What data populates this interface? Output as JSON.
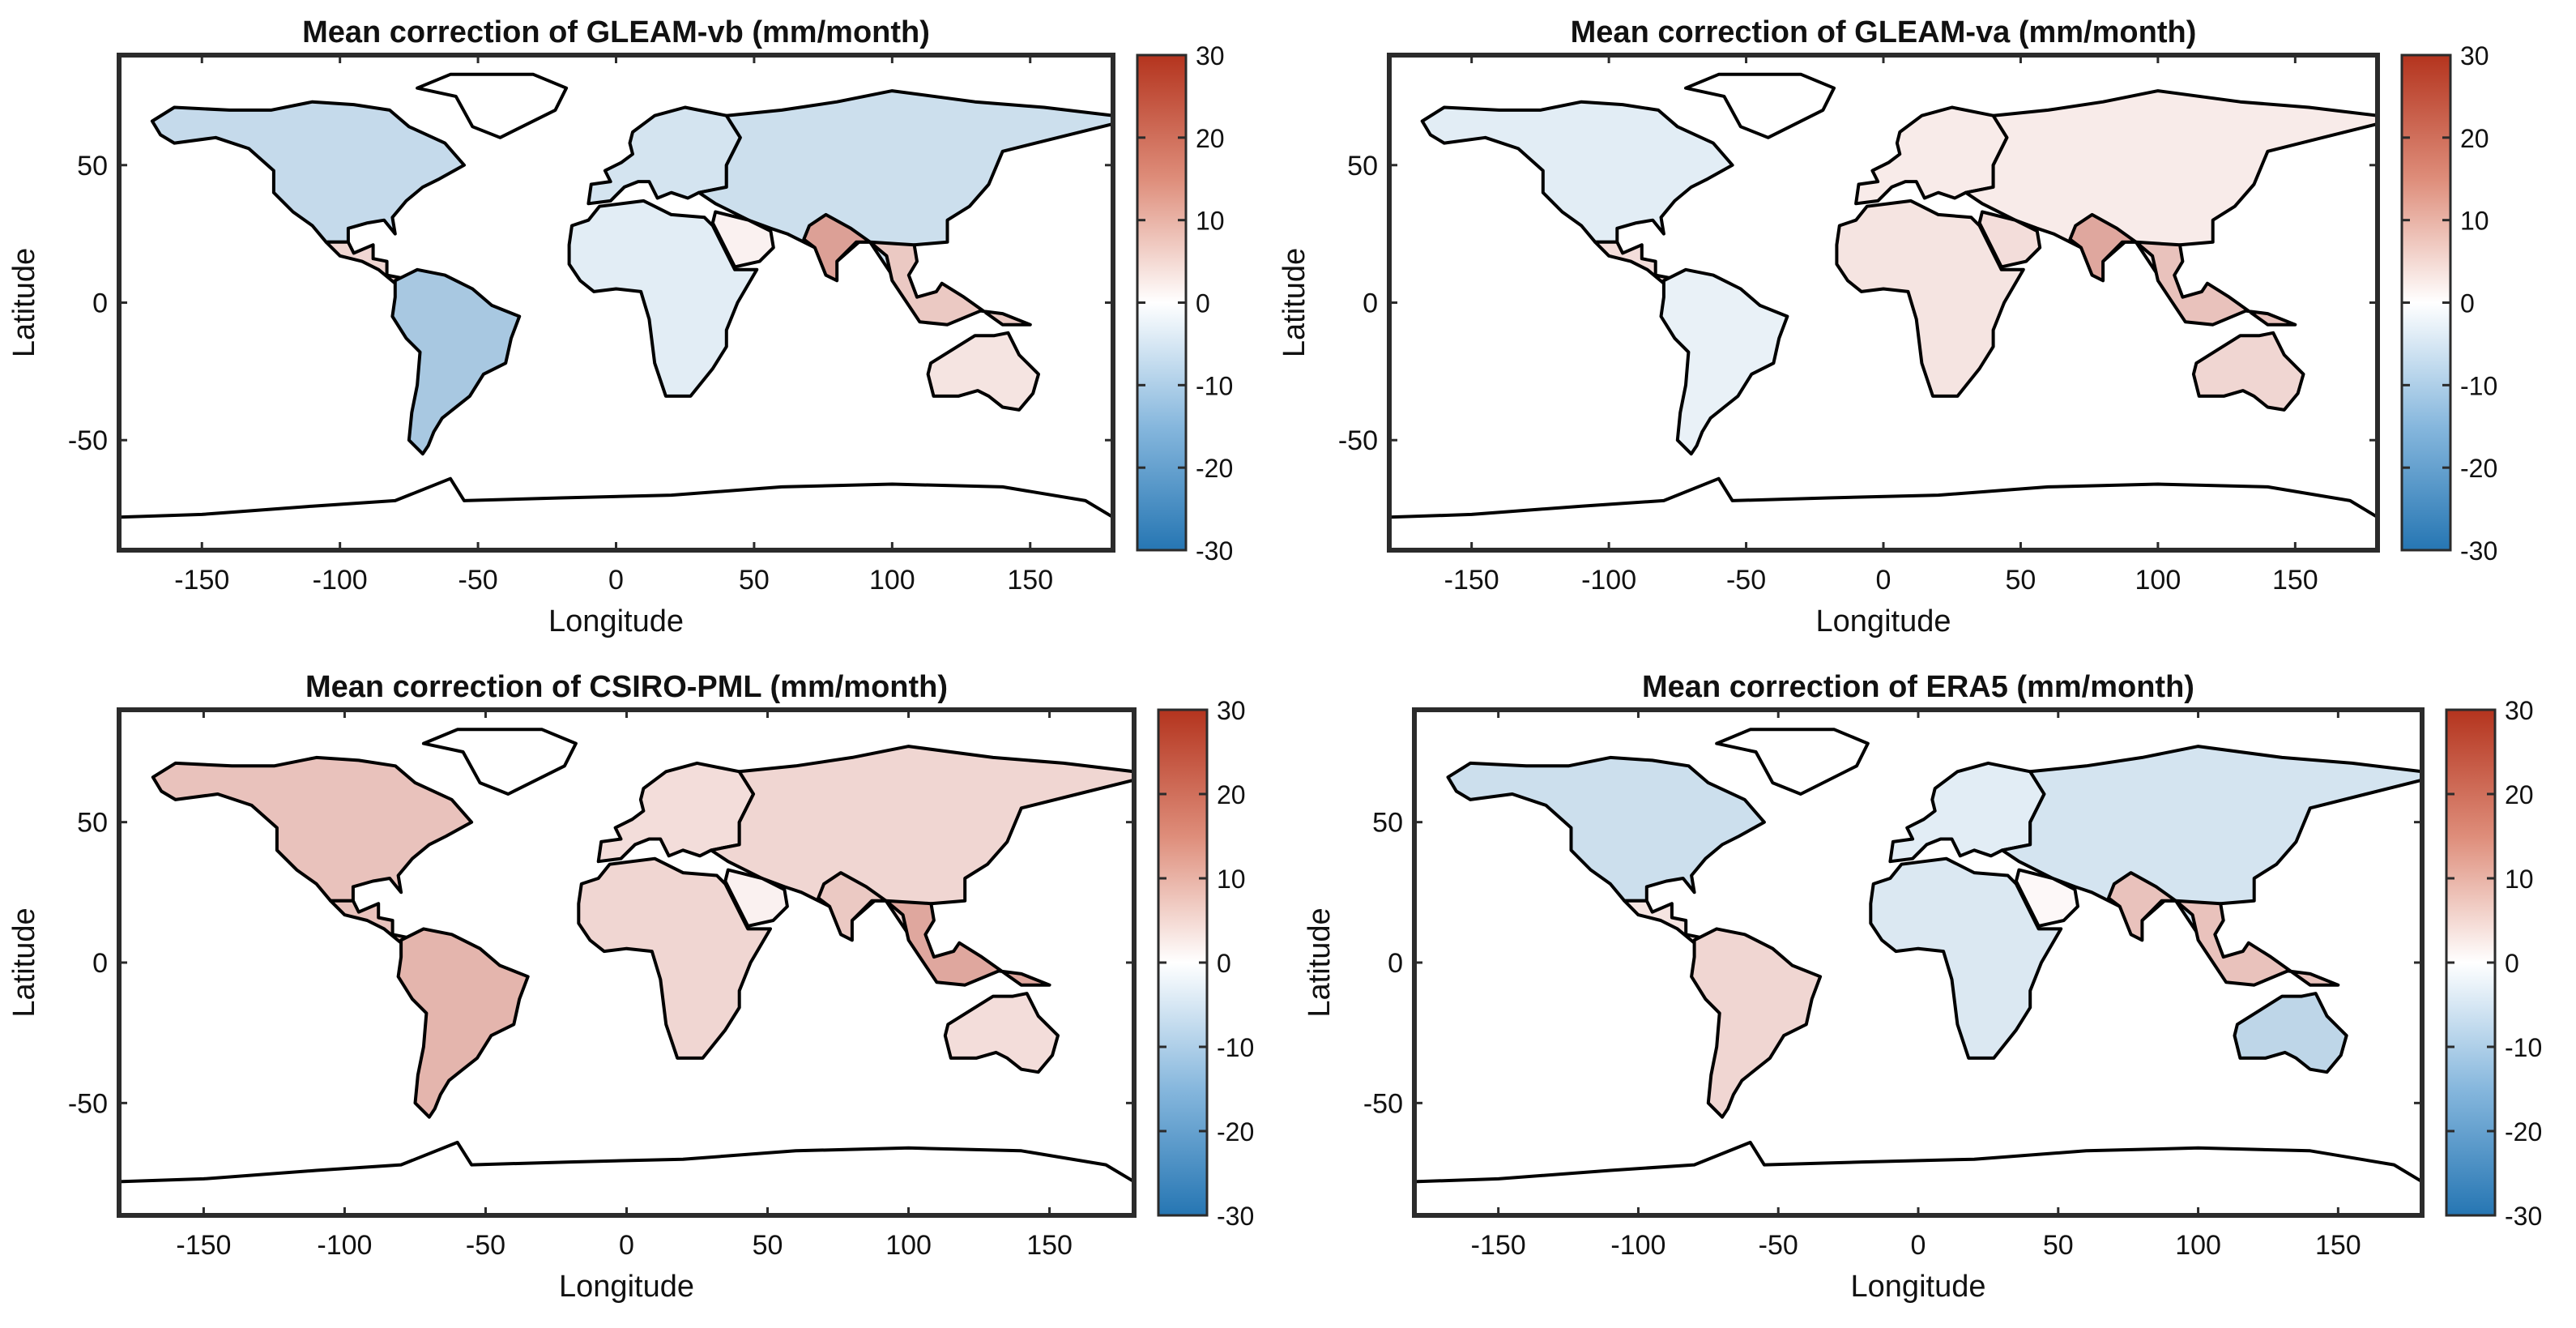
{
  "figure": {
    "type": "map-grid",
    "rows": 2,
    "cols": 2
  },
  "colors": {
    "blue": "#2676b3",
    "white": "#ffffff",
    "red": "#b4341e",
    "land_outline": "#000000",
    "frame": "#2b2b2b"
  },
  "chart_data": [
    {
      "type": "heatmap",
      "title": "Mean correction of GLEAM-vb (mm/month)",
      "xlabel": "Longitude",
      "ylabel": "Latitude",
      "xlim": [
        -180,
        180
      ],
      "ylim": [
        -90,
        90
      ],
      "xticks": [
        -150,
        -100,
        -50,
        0,
        50,
        100,
        150
      ],
      "yticks": [
        -50,
        0,
        50
      ],
      "colorbar": {
        "min": -30,
        "max": 30,
        "ticks": [
          30,
          20,
          10,
          0,
          -10,
          -20,
          -30
        ]
      },
      "regions": [
        {
          "name": "North America",
          "value": -8
        },
        {
          "name": "Greenland",
          "value": 0
        },
        {
          "name": "Central America",
          "value": 6
        },
        {
          "name": "South America",
          "value": -12
        },
        {
          "name": "Africa",
          "value": -4
        },
        {
          "name": "Europe",
          "value": -6
        },
        {
          "name": "Asia",
          "value": -7
        },
        {
          "name": "Arabia",
          "value": 2
        },
        {
          "name": "India",
          "value": 14
        },
        {
          "name": "Southeast Asia",
          "value": 8
        },
        {
          "name": "Australia",
          "value": 4
        },
        {
          "name": "Antarctica",
          "value": 0
        }
      ]
    },
    {
      "type": "heatmap",
      "title": "Mean correction of GLEAM-va (mm/month)",
      "xlabel": "Longitude",
      "ylabel": "Latitude",
      "xlim": [
        -180,
        180
      ],
      "ylim": [
        -90,
        90
      ],
      "xticks": [
        -150,
        -100,
        -50,
        0,
        50,
        100,
        150
      ],
      "yticks": [
        -50,
        0,
        50
      ],
      "colorbar": {
        "min": -30,
        "max": 30,
        "ticks": [
          30,
          20,
          10,
          0,
          -10,
          -20,
          -30
        ]
      },
      "regions": [
        {
          "name": "North America",
          "value": -4
        },
        {
          "name": "Greenland",
          "value": 0
        },
        {
          "name": "Central America",
          "value": 5
        },
        {
          "name": "South America",
          "value": -3
        },
        {
          "name": "Africa",
          "value": 4
        },
        {
          "name": "Europe",
          "value": 3
        },
        {
          "name": "Asia",
          "value": 3
        },
        {
          "name": "Arabia",
          "value": 5
        },
        {
          "name": "India",
          "value": 13
        },
        {
          "name": "Southeast Asia",
          "value": 9
        },
        {
          "name": "Australia",
          "value": 6
        },
        {
          "name": "Antarctica",
          "value": 0
        }
      ]
    },
    {
      "type": "heatmap",
      "title": "Mean correction of CSIRO-PML (mm/month)",
      "xlabel": "Longitude",
      "ylabel": "Latitude",
      "xlim": [
        -180,
        180
      ],
      "ylim": [
        -90,
        90
      ],
      "xticks": [
        -150,
        -100,
        -50,
        0,
        50,
        100,
        150
      ],
      "yticks": [
        -50,
        0,
        50
      ],
      "colorbar": {
        "min": -30,
        "max": 30,
        "ticks": [
          30,
          20,
          10,
          0,
          -10,
          -20,
          -30
        ]
      },
      "regions": [
        {
          "name": "North America",
          "value": 9
        },
        {
          "name": "Greenland",
          "value": 0
        },
        {
          "name": "Central America",
          "value": 9
        },
        {
          "name": "South America",
          "value": 11
        },
        {
          "name": "Africa",
          "value": 6
        },
        {
          "name": "Europe",
          "value": 5
        },
        {
          "name": "Asia",
          "value": 6
        },
        {
          "name": "Arabia",
          "value": 2
        },
        {
          "name": "India",
          "value": 8
        },
        {
          "name": "Southeast Asia",
          "value": 13
        },
        {
          "name": "Australia",
          "value": 5
        },
        {
          "name": "Antarctica",
          "value": 0
        }
      ]
    },
    {
      "type": "heatmap",
      "title": "Mean correction of ERA5 (mm/month)",
      "xlabel": "Longitude",
      "ylabel": "Latitude",
      "xlim": [
        -180,
        180
      ],
      "ylim": [
        -90,
        90
      ],
      "xticks": [
        -150,
        -100,
        -50,
        0,
        50,
        100,
        150
      ],
      "yticks": [
        -50,
        0,
        50
      ],
      "colorbar": {
        "min": -30,
        "max": 30,
        "ticks": [
          30,
          20,
          10,
          0,
          -10,
          -20,
          -30
        ]
      },
      "regions": [
        {
          "name": "North America",
          "value": -7
        },
        {
          "name": "Greenland",
          "value": 0
        },
        {
          "name": "Central America",
          "value": 4
        },
        {
          "name": "South America",
          "value": 6
        },
        {
          "name": "Africa",
          "value": -5
        },
        {
          "name": "Europe",
          "value": -4
        },
        {
          "name": "Asia",
          "value": -6
        },
        {
          "name": "Arabia",
          "value": 1
        },
        {
          "name": "India",
          "value": 9
        },
        {
          "name": "Southeast Asia",
          "value": 9
        },
        {
          "name": "Australia",
          "value": -9
        },
        {
          "name": "Antarctica",
          "value": 0
        }
      ]
    }
  ]
}
